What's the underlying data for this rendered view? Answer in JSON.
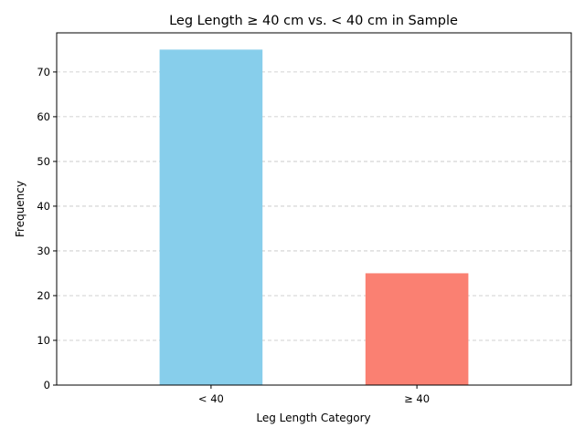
{
  "chart_data": {
    "type": "bar",
    "title": "Leg Length ≥ 40 cm vs. < 40 cm in Sample",
    "xlabel": "Leg Length Category",
    "ylabel": "Frequency",
    "categories": [
      "< 40",
      "≥ 40"
    ],
    "values": [
      75,
      25
    ],
    "colors": [
      "#87ceeb",
      "#fa8072"
    ],
    "ylim": [
      0,
      78.75
    ],
    "yticks": [
      0,
      10,
      20,
      30,
      40,
      50,
      60,
      70
    ],
    "grid": "y-dashed",
    "legend": "none"
  }
}
